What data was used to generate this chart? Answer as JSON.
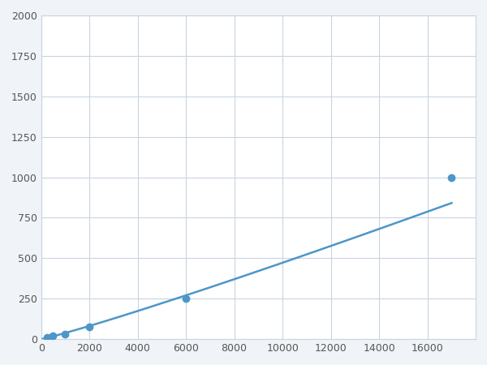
{
  "x_data": [
    250,
    500,
    1000,
    2000,
    6000,
    17000
  ],
  "y_data": [
    10,
    20,
    30,
    75,
    250,
    1000
  ],
  "marker_x": [
    250,
    500,
    1000,
    2000,
    6000,
    17000
  ],
  "line_color": "#4d96c9",
  "marker_color": "#4d96c9",
  "marker_size": 6,
  "line_width": 1.8,
  "xlim": [
    0,
    18000
  ],
  "ylim": [
    0,
    2000
  ],
  "xticks": [
    0,
    2000,
    4000,
    6000,
    8000,
    10000,
    12000,
    14000,
    16000
  ],
  "yticks": [
    0,
    250,
    500,
    750,
    1000,
    1250,
    1500,
    1750,
    2000
  ],
  "grid_color": "#c8d4e0",
  "background_color": "#ffffff",
  "figure_background": "#f0f4f8"
}
